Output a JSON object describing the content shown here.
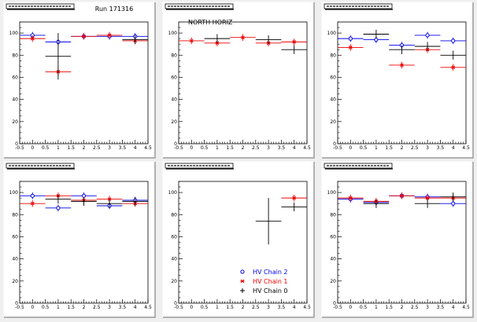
{
  "page": {
    "run_label": "Run 171316",
    "legend": {
      "items": [
        {
          "marker": "circle",
          "color": "#0000ee",
          "label": "HV Chain 2"
        },
        {
          "marker": "star",
          "color": "#ee0000",
          "label": "HV Chain 1"
        },
        {
          "marker": "cross",
          "color": "#000000",
          "label": "HV Chain 0"
        }
      ]
    }
  },
  "chart_data": [
    {
      "type": "scatter",
      "title": "",
      "annotation": "",
      "xlim": [
        -0.5,
        4.5
      ],
      "ylim": [
        0,
        110
      ],
      "xticks": [
        "-0.5",
        "0",
        "0.5",
        "1",
        "1.5",
        "2",
        "2.5",
        "3",
        "3.5",
        "4",
        "4.5"
      ],
      "yticks": [
        "0",
        "20",
        "40",
        "60",
        "80",
        "100"
      ],
      "series": [
        {
          "color": "#0000ee",
          "marker": "circle",
          "points": [
            [
              0,
              98
            ],
            [
              1,
              92
            ],
            [
              2,
              97
            ],
            [
              3,
              97
            ],
            [
              4,
              97
            ]
          ]
        },
        {
          "color": "#ee0000",
          "marker": "star",
          "points": [
            [
              0,
              95
            ],
            [
              1,
              65
            ],
            [
              2,
              97
            ],
            [
              3,
              98
            ],
            [
              4,
              93
            ]
          ]
        },
        {
          "color": "#000000",
          "marker": "cross",
          "points": [
            [
              1,
              79
            ],
            [
              4,
              94
            ]
          ]
        }
      ]
    },
    {
      "type": "scatter",
      "title": "",
      "annotation": "NORTH HORIZ",
      "xlim": [
        -0.5,
        4.5
      ],
      "ylim": [
        0,
        110
      ],
      "xticks": [
        "-0.5",
        "0",
        "0.5",
        "1",
        "1.5",
        "2",
        "2.5",
        "3",
        "3.5",
        "4",
        "4.5"
      ],
      "yticks": [
        "0",
        "20",
        "40",
        "60",
        "80",
        "100"
      ],
      "series": [
        {
          "color": "#ee0000",
          "marker": "star",
          "points": [
            [
              0,
              93
            ],
            [
              1,
              91
            ],
            [
              2,
              96
            ],
            [
              3,
              91
            ],
            [
              4,
              92
            ]
          ]
        },
        {
          "color": "#000000",
          "marker": "cross",
          "points": [
            [
              1,
              95
            ],
            [
              3,
              94
            ],
            [
              4,
              85
            ]
          ]
        }
      ]
    },
    {
      "type": "scatter",
      "title": "",
      "annotation": "",
      "xlim": [
        -0.5,
        4.5
      ],
      "ylim": [
        0,
        110
      ],
      "xticks": [
        "-0.5",
        "0",
        "0.5",
        "1",
        "1.5",
        "2",
        "2.5",
        "3",
        "3.5",
        "4",
        "4.5"
      ],
      "yticks": [
        "0",
        "20",
        "40",
        "60",
        "80",
        "100"
      ],
      "series": [
        {
          "color": "#0000ee",
          "marker": "circle",
          "points": [
            [
              0,
              95
            ],
            [
              1,
              94
            ],
            [
              2,
              89
            ],
            [
              3,
              98
            ],
            [
              4,
              93
            ]
          ]
        },
        {
          "color": "#ee0000",
          "marker": "star",
          "points": [
            [
              0,
              87
            ],
            [
              2,
              71
            ],
            [
              3,
              85
            ],
            [
              4,
              69
            ]
          ]
        },
        {
          "color": "#000000",
          "marker": "cross",
          "points": [
            [
              1,
              99
            ],
            [
              2,
              85
            ],
            [
              3,
              88
            ],
            [
              4,
              80
            ]
          ]
        }
      ]
    },
    {
      "type": "scatter",
      "title": "",
      "annotation": "",
      "xlim": [
        -0.5,
        4.5
      ],
      "ylim": [
        0,
        110
      ],
      "xticks": [
        "-0.5",
        "0",
        "0.5",
        "1",
        "1.5",
        "2",
        "2.5",
        "3",
        "3.5",
        "4",
        "4.5"
      ],
      "yticks": [
        "0",
        "20",
        "40",
        "60",
        "80",
        "100"
      ],
      "series": [
        {
          "color": "#0000ee",
          "marker": "circle",
          "points": [
            [
              0,
              97
            ],
            [
              1,
              86
            ],
            [
              2,
              97
            ],
            [
              3,
              88
            ],
            [
              4,
              93
            ]
          ]
        },
        {
          "color": "#ee0000",
          "marker": "star",
          "points": [
            [
              0,
              90
            ],
            [
              1,
              97
            ],
            [
              2,
              93
            ],
            [
              3,
              94
            ],
            [
              4,
              90
            ]
          ]
        },
        {
          "color": "#000000",
          "marker": "cross",
          "points": [
            [
              1,
              94
            ],
            [
              2,
              92
            ],
            [
              3,
              90
            ],
            [
              4,
              92
            ]
          ]
        }
      ]
    },
    {
      "type": "scatter",
      "title": "",
      "annotation": "",
      "xlim": [
        -0.5,
        4.5
      ],
      "ylim": [
        0,
        110
      ],
      "xticks": [
        "-0.5",
        "0",
        "0.5",
        "1",
        "1.5",
        "2",
        "2.5",
        "3",
        "3.5",
        "4",
        "4.5"
      ],
      "yticks": [
        "0",
        "20",
        "40",
        "60",
        "80",
        "100"
      ],
      "series": [
        {
          "color": "#ee0000",
          "marker": "star",
          "points": [
            [
              4,
              95
            ]
          ]
        },
        {
          "color": "#000000",
          "marker": "cross",
          "points": [
            [
              3,
              74
            ],
            [
              4,
              87
            ]
          ]
        }
      ]
    },
    {
      "type": "scatter",
      "title": "",
      "annotation": "",
      "xlim": [
        -0.5,
        4.5
      ],
      "ylim": [
        0,
        110
      ],
      "xticks": [
        "-0.5",
        "0",
        "0.5",
        "1",
        "1.5",
        "2",
        "2.5",
        "3",
        "3.5",
        "4",
        "4.5"
      ],
      "yticks": [
        "0",
        "20",
        "40",
        "60",
        "80",
        "100"
      ],
      "series": [
        {
          "color": "#0000ee",
          "marker": "circle",
          "points": [
            [
              0,
              94
            ],
            [
              1,
              91
            ],
            [
              2,
              97
            ],
            [
              3,
              96
            ],
            [
              4,
              90
            ]
          ]
        },
        {
          "color": "#ee0000",
          "marker": "star",
          "points": [
            [
              0,
              95
            ],
            [
              1,
              92
            ],
            [
              2,
              97
            ],
            [
              3,
              95
            ],
            [
              4,
              95
            ]
          ]
        },
        {
          "color": "#000000",
          "marker": "cross",
          "points": [
            [
              1,
              90
            ],
            [
              3,
              90
            ],
            [
              4,
              96
            ]
          ]
        }
      ]
    }
  ]
}
